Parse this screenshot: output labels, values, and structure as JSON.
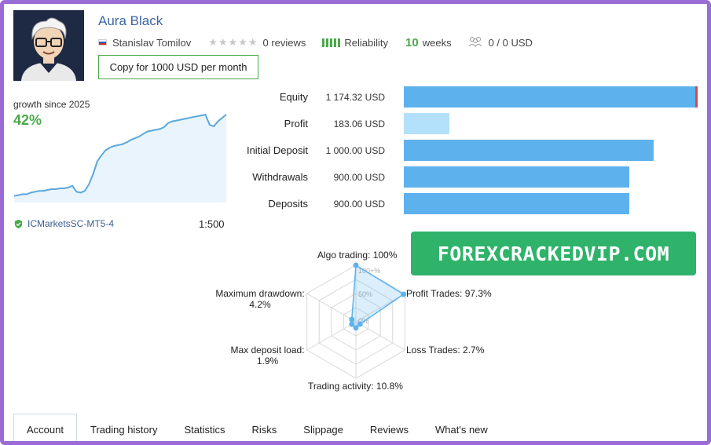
{
  "header": {
    "title": "Aura Black",
    "author": "Stanislav Tomilov",
    "reviews": "0 reviews",
    "reliability": "Reliability",
    "weeks_num": "10",
    "weeks_label": "weeks",
    "subscribers": "0 / 0 USD",
    "copy_button": "Copy for 1000 USD per month"
  },
  "growth": {
    "label": "growth since 2025",
    "value": "42%",
    "points": [
      4,
      5,
      6,
      6,
      8,
      9,
      10,
      10,
      11,
      12,
      12,
      13,
      13,
      14,
      16,
      9,
      8,
      10,
      18,
      30,
      45,
      52,
      58,
      61,
      63,
      64,
      65,
      67,
      70,
      72,
      74,
      77,
      80,
      81,
      82,
      83,
      85,
      90,
      92,
      93,
      94,
      95,
      96,
      97,
      98,
      99,
      100,
      88,
      86,
      92,
      96,
      100
    ]
  },
  "account": {
    "server": "ICMarketsSC-MT5-4",
    "leverage": "1:500"
  },
  "stats": [
    {
      "label": "Equity",
      "value": "1 174.32 USD",
      "amount": 1174.32,
      "style": "dark",
      "marker": true
    },
    {
      "label": "Profit",
      "value": "183.06 USD",
      "amount": 183.06,
      "style": "light",
      "marker": false
    },
    {
      "label": "Initial Deposit",
      "value": "1 000.00 USD",
      "amount": 1000.0,
      "style": "dark",
      "marker": false
    },
    {
      "label": "Withdrawals",
      "value": "900.00 USD",
      "amount": 900.0,
      "style": "dark",
      "marker": false
    },
    {
      "label": "Deposits",
      "value": "900.00 USD",
      "amount": 900.0,
      "style": "dark",
      "marker": false
    }
  ],
  "watermark": "FOREXCRACKEDVIP.COM",
  "radar": {
    "ring_labels": [
      "100+%",
      "50%",
      "0%"
    ],
    "axes": [
      {
        "label": "Algo trading: 100%",
        "value": 100
      },
      {
        "label": "Profit Trades: 97.3%",
        "value": 97.3
      },
      {
        "label": "Loss Trades: 2.7%",
        "value": 2.7
      },
      {
        "label": "Trading activity: 10.8%",
        "value": 10.8
      },
      {
        "label_line1": "Max deposit load:",
        "label_line2": "1.9%",
        "value": 1.9
      },
      {
        "label_line1": "Maximum drawdown:",
        "label_line2": "4.2%",
        "value": 4.2
      }
    ]
  },
  "tabs": [
    "Account",
    "Trading history",
    "Statistics",
    "Risks",
    "Slippage",
    "Reviews",
    "What's new"
  ],
  "colors": {
    "accent_green": "#4ba94b",
    "bar_blue": "#5db2ee",
    "bar_light": "#b3e0fa",
    "title_blue": "#3d66a7",
    "watermark_green": "#2fb36a"
  }
}
